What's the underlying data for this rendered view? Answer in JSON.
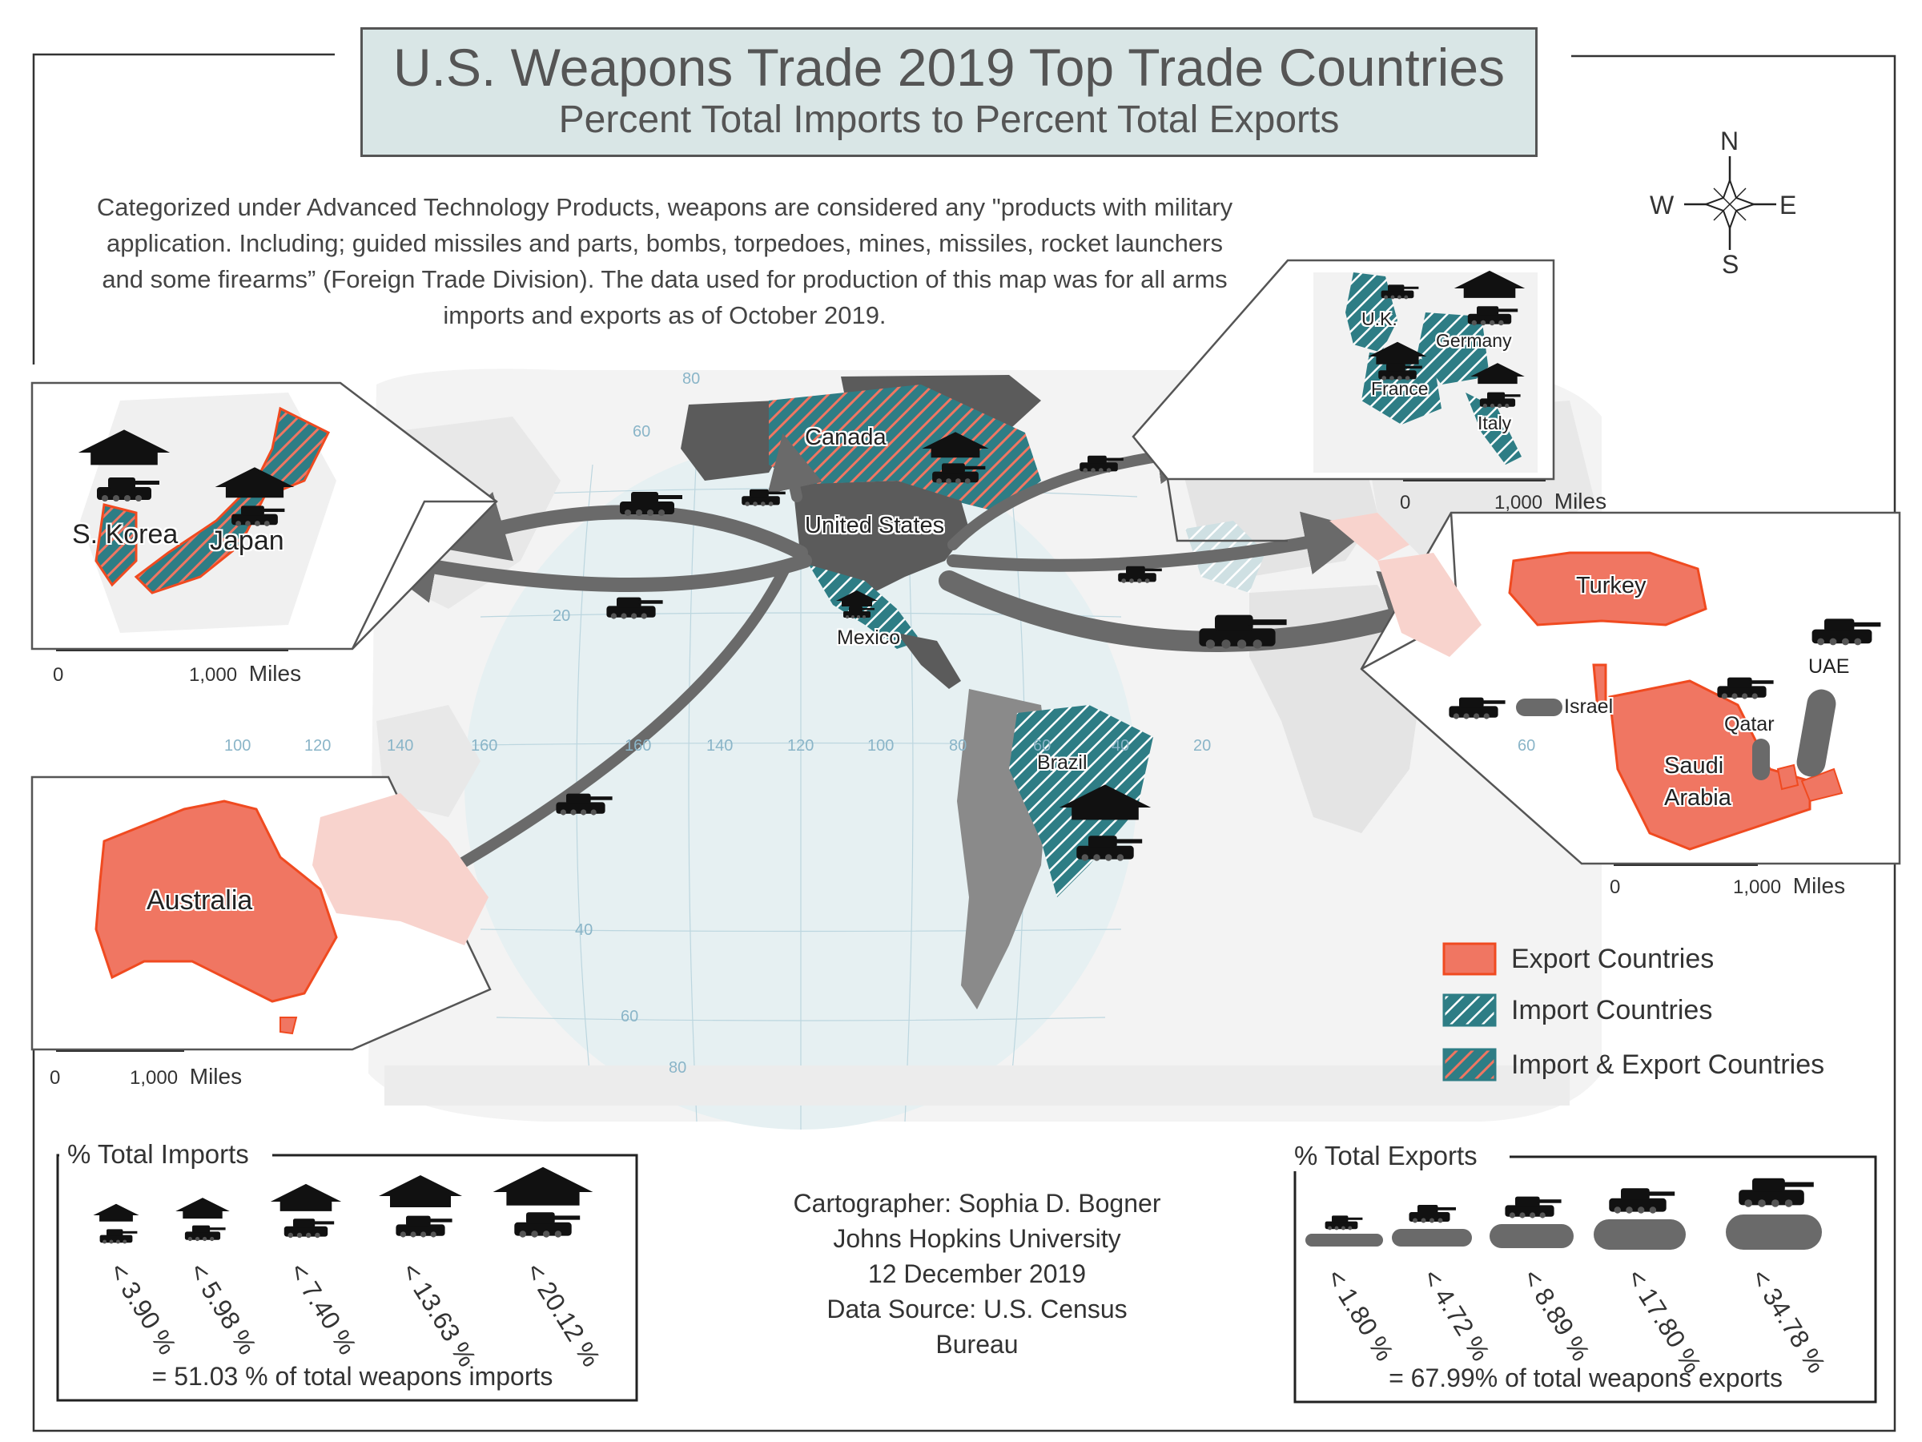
{
  "title": "U.S. Weapons Trade 2019 Top Trade Countries",
  "subtitle": "Percent Total Imports to Percent Total Exports",
  "intro": "Categorized under Advanced Technology Products, weapons are considered any \"products with military application. Including; guided missiles and parts, bombs, torpedoes, mines, missiles, rocket launchers and some firearms” (Foreign Trade Division). The data used for production of this map was for all arms imports and exports as of October 2019.",
  "compass": {
    "n": "N",
    "s": "S",
    "e": "E",
    "w": "W"
  },
  "countries": {
    "canada": "Canada",
    "united_states": "United States",
    "mexico": "Mexico",
    "brazil": "Brazil",
    "skorea": "S. Korea",
    "japan": "Japan",
    "australia": "Australia",
    "uk": "U.K.",
    "germany": "Germany",
    "france": "France",
    "italy": "Italy",
    "turkey": "Turkey",
    "israel": "Israel",
    "qatar": "Qatar",
    "uae": "UAE",
    "saudi_l1": "Saudi",
    "saudi_l2": "Arabia"
  },
  "scalebars": {
    "zero": "0",
    "thousand": "1,000",
    "miles": "Miles"
  },
  "graticule": {
    "lat": [
      "80",
      "60",
      "20",
      "40",
      "60",
      "80"
    ],
    "lon": [
      "100",
      "120",
      "140",
      "160",
      "160",
      "140",
      "120",
      "100",
      "80",
      "60",
      "40",
      "20",
      "60"
    ]
  },
  "legend": {
    "export": "Export Countries",
    "import": "Import Countries",
    "both": "Import & Export Countries"
  },
  "colors": {
    "export": "#f07662",
    "export_border": "#f04a20",
    "import": "#2e7d85",
    "dark_country": "#5b5b5b",
    "ocean_highlight": "#e6f0f2",
    "land_light": "#e8e8e8",
    "arrow": "#6a6a6a"
  },
  "imports_panel": {
    "title": "% Total Imports",
    "classes": [
      "< 3.90 %",
      "< 5.98 %",
      "< 7.40 %",
      "< 13.63 %",
      "< 20.12 %"
    ],
    "total": "= 51.03 % of total weapons imports"
  },
  "exports_panel": {
    "title": "% Total Exports",
    "classes": [
      "< 1.80 %",
      "< 4.72 %",
      "< 8.89 %",
      "< 17.80 %",
      "< 34.78 %"
    ],
    "total": "= 67.99% of total weapons exports"
  },
  "credits": {
    "line1": "Cartographer: Sophia D. Bogner",
    "line2": "Johns Hopkins University",
    "line3": "12 December 2019",
    "line4": "Data Source: U.S. Census Bureau"
  }
}
